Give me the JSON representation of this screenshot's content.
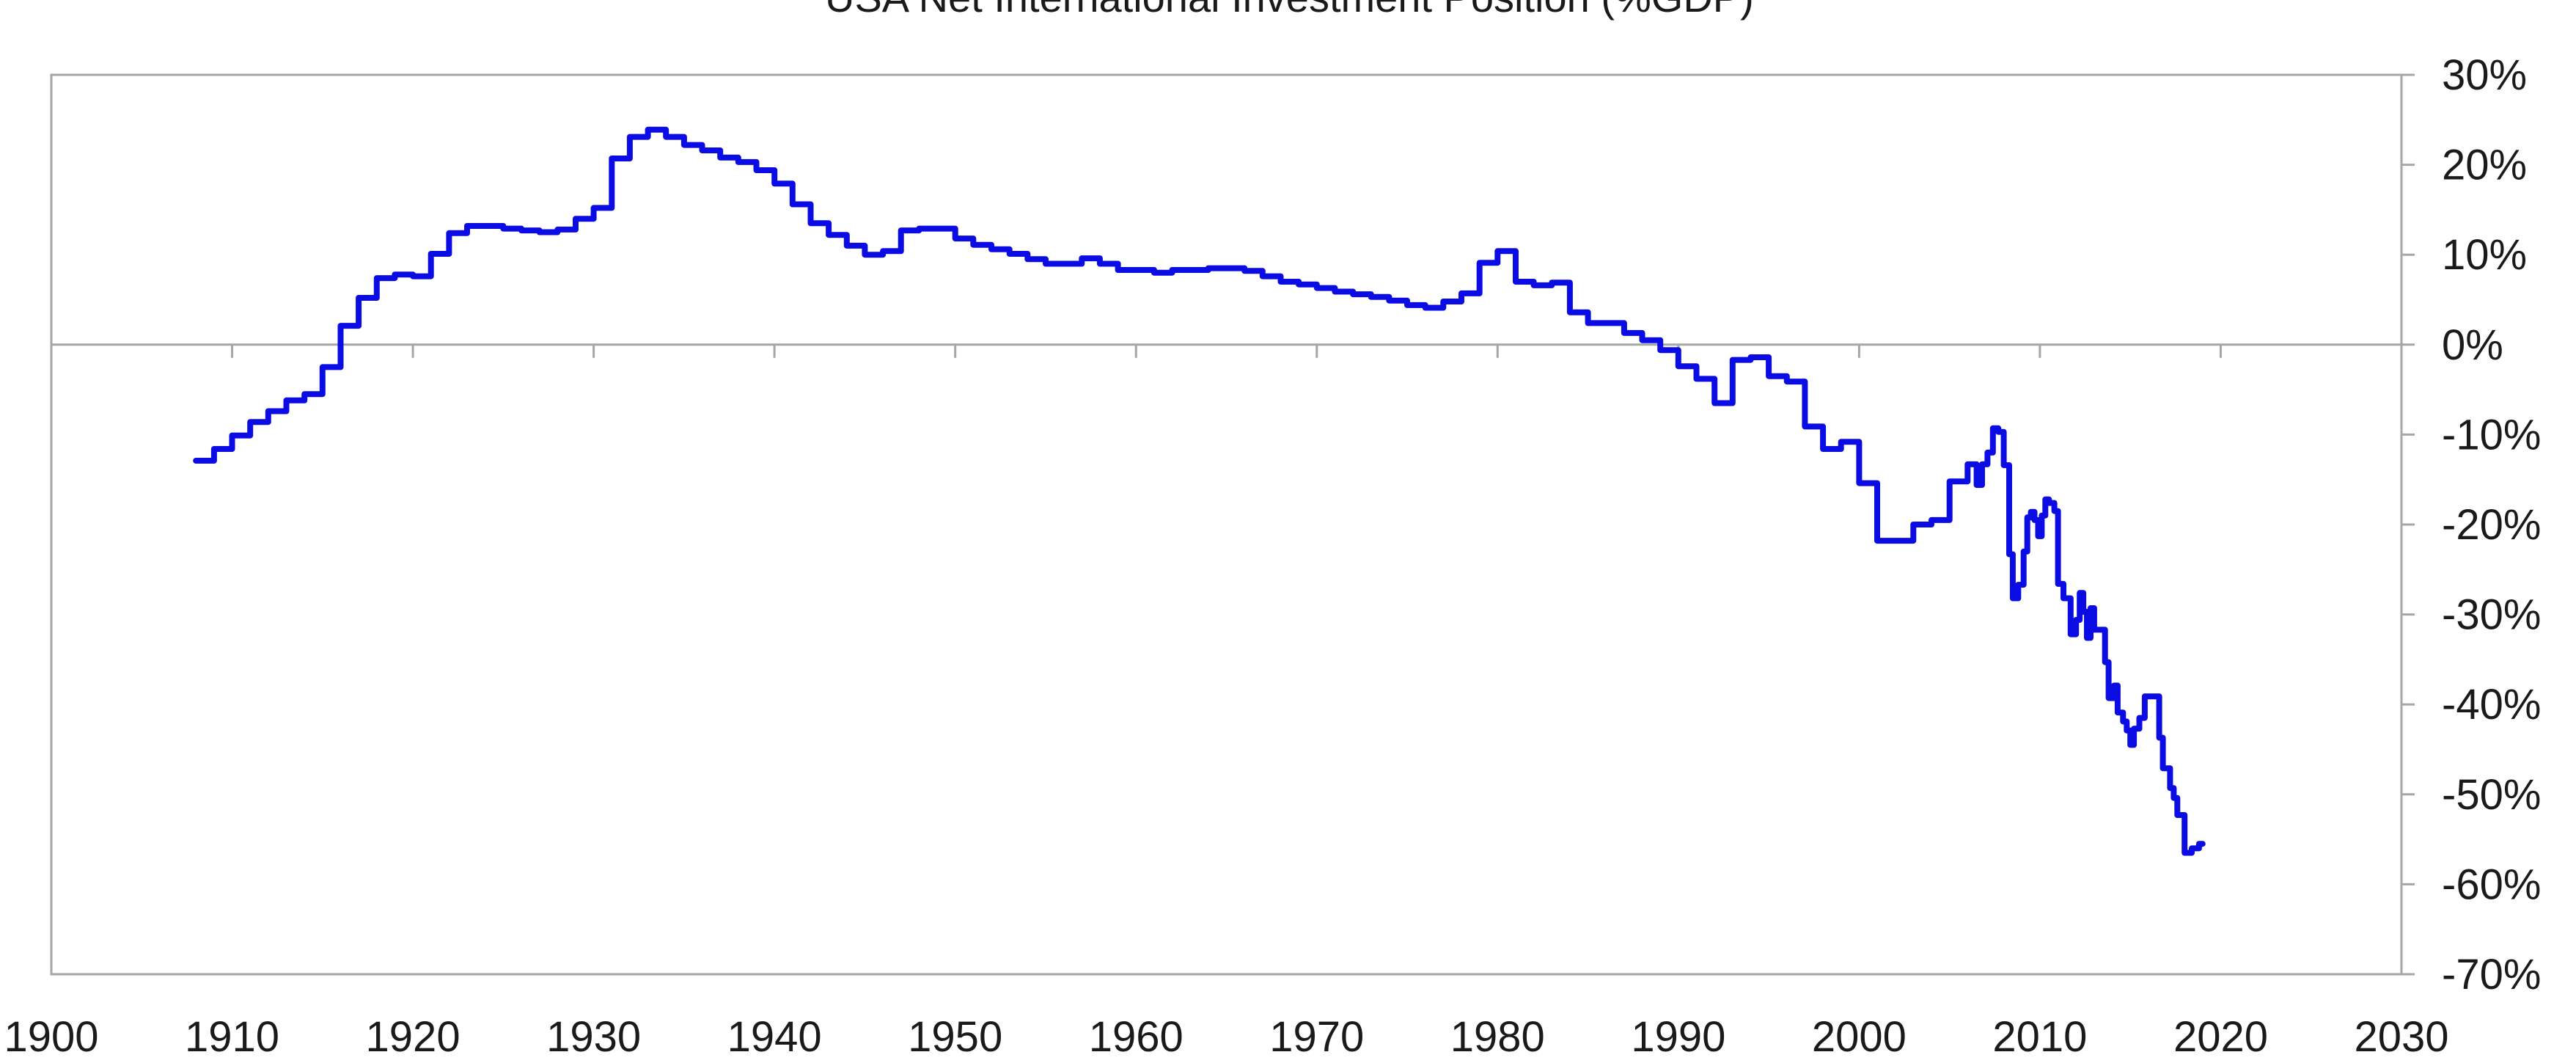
{
  "colors": {
    "series": "#0b0be3",
    "frame": "#a6a6a6",
    "text": "#1a1a1a"
  },
  "chart_data": {
    "type": "line",
    "title": "",
    "xlabel": "",
    "ylabel": "",
    "xlim": [
      1900,
      2030
    ],
    "ylim": [
      -70,
      30
    ],
    "x_ticks": [
      1900,
      1910,
      1920,
      1930,
      1940,
      1950,
      1960,
      1970,
      1980,
      1990,
      2000,
      2010,
      2020,
      2030
    ],
    "x_tick_labels": [
      "1900",
      "1910",
      "1920",
      "1930",
      "1940",
      "1950",
      "1960",
      "1970",
      "1980",
      "1990",
      "2000",
      "2010",
      "2020",
      "2030"
    ],
    "y_ticks": [
      30,
      20,
      10,
      0,
      -10,
      -20,
      -30,
      -40,
      -50,
      -60,
      -70
    ],
    "y_tick_labels": [
      "30%",
      "20%",
      "10%",
      "0%",
      "-10%",
      "-20%",
      "-30%",
      "-40%",
      "-50%",
      "-60%",
      "-70%"
    ],
    "y_axis_side": "right",
    "grid": false,
    "zero_line": true,
    "legend_position": "top",
    "series": [
      {
        "name": "USA Net International Investment Position (%GDP)",
        "color": "#0b0be3",
        "line_style": "step",
        "points": [
          [
            1908,
            -12.9
          ],
          [
            1909,
            -12.9
          ],
          [
            1909,
            -11.6
          ],
          [
            1910,
            -11.6
          ],
          [
            1910,
            -10.1
          ],
          [
            1911,
            -10.1
          ],
          [
            1911,
            -8.6
          ],
          [
            1912,
            -8.6
          ],
          [
            1912,
            -7.4
          ],
          [
            1913,
            -7.4
          ],
          [
            1913,
            -6.2
          ],
          [
            1914,
            -6.2
          ],
          [
            1914,
            -5.5
          ],
          [
            1915,
            -5.5
          ],
          [
            1915,
            -2.5
          ],
          [
            1916,
            -2.5
          ],
          [
            1916,
            2.1
          ],
          [
            1917,
            2.1
          ],
          [
            1917,
            5.2
          ],
          [
            1918,
            5.2
          ],
          [
            1918,
            7.4
          ],
          [
            1919,
            7.4
          ],
          [
            1919,
            7.8
          ],
          [
            1920,
            7.8
          ],
          [
            1920,
            7.6
          ],
          [
            1921,
            7.6
          ],
          [
            1921,
            10.1
          ],
          [
            1922,
            10.1
          ],
          [
            1922,
            12.4
          ],
          [
            1923,
            12.4
          ],
          [
            1923,
            13.2
          ],
          [
            1925,
            13.2
          ],
          [
            1925,
            12.9
          ],
          [
            1926,
            12.9
          ],
          [
            1926,
            12.7
          ],
          [
            1927,
            12.7
          ],
          [
            1927,
            12.5
          ],
          [
            1928,
            12.5
          ],
          [
            1928,
            12.8
          ],
          [
            1929,
            12.8
          ],
          [
            1929,
            14.0
          ],
          [
            1930,
            14.0
          ],
          [
            1930,
            15.2
          ],
          [
            1931,
            15.2
          ],
          [
            1931,
            20.7
          ],
          [
            1932,
            20.7
          ],
          [
            1932,
            23.1
          ],
          [
            1933,
            23.1
          ],
          [
            1933,
            23.9
          ],
          [
            1934,
            23.9
          ],
          [
            1934,
            23.1
          ],
          [
            1935,
            23.1
          ],
          [
            1935,
            22.2
          ],
          [
            1936,
            22.2
          ],
          [
            1936,
            21.6
          ],
          [
            1937,
            21.6
          ],
          [
            1937,
            20.8
          ],
          [
            1938,
            20.8
          ],
          [
            1938,
            20.3
          ],
          [
            1939,
            20.3
          ],
          [
            1939,
            19.4
          ],
          [
            1940,
            19.4
          ],
          [
            1940,
            17.9
          ],
          [
            1941,
            17.9
          ],
          [
            1941,
            15.6
          ],
          [
            1942,
            15.6
          ],
          [
            1942,
            13.5
          ],
          [
            1943,
            13.5
          ],
          [
            1943,
            12.2
          ],
          [
            1944,
            12.2
          ],
          [
            1944,
            11.0
          ],
          [
            1945,
            11.0
          ],
          [
            1945,
            10.0
          ],
          [
            1946,
            10.0
          ],
          [
            1946,
            10.4
          ],
          [
            1947,
            10.4
          ],
          [
            1947,
            12.7
          ],
          [
            1948,
            12.7
          ],
          [
            1948,
            12.9
          ],
          [
            1950,
            12.9
          ],
          [
            1950,
            11.8
          ],
          [
            1951,
            11.8
          ],
          [
            1951,
            11.1
          ],
          [
            1952,
            11.1
          ],
          [
            1952,
            10.6
          ],
          [
            1953,
            10.6
          ],
          [
            1953,
            10.1
          ],
          [
            1954,
            10.1
          ],
          [
            1954,
            9.5
          ],
          [
            1955,
            9.5
          ],
          [
            1955,
            9.0
          ],
          [
            1957,
            9.0
          ],
          [
            1957,
            9.6
          ],
          [
            1958,
            9.6
          ],
          [
            1958,
            9.0
          ],
          [
            1959,
            9.0
          ],
          [
            1959,
            8.3
          ],
          [
            1961,
            8.3
          ],
          [
            1961,
            8.0
          ],
          [
            1962,
            8.0
          ],
          [
            1962,
            8.3
          ],
          [
            1964,
            8.3
          ],
          [
            1964,
            8.5
          ],
          [
            1966,
            8.5
          ],
          [
            1966,
            8.2
          ],
          [
            1967,
            8.2
          ],
          [
            1967,
            7.6
          ],
          [
            1968,
            7.6
          ],
          [
            1968,
            7.0
          ],
          [
            1969,
            7.0
          ],
          [
            1969,
            6.7
          ],
          [
            1970,
            6.7
          ],
          [
            1970,
            6.3
          ],
          [
            1971,
            6.3
          ],
          [
            1971,
            5.9
          ],
          [
            1972,
            5.9
          ],
          [
            1972,
            5.6
          ],
          [
            1973,
            5.6
          ],
          [
            1973,
            5.3
          ],
          [
            1974,
            5.3
          ],
          [
            1974,
            4.9
          ],
          [
            1975,
            4.9
          ],
          [
            1975,
            4.4
          ],
          [
            1976,
            4.4
          ],
          [
            1976,
            4.1
          ],
          [
            1977,
            4.1
          ],
          [
            1977,
            4.8
          ],
          [
            1978,
            4.8
          ],
          [
            1978,
            5.7
          ],
          [
            1979,
            5.7
          ],
          [
            1979,
            9.1
          ],
          [
            1980,
            9.1
          ],
          [
            1980,
            10.4
          ],
          [
            1981,
            10.4
          ],
          [
            1981,
            7.0
          ],
          [
            1982,
            7.0
          ],
          [
            1982,
            6.6
          ],
          [
            1983,
            6.6
          ],
          [
            1983,
            6.9
          ],
          [
            1984,
            6.9
          ],
          [
            1984,
            3.6
          ],
          [
            1985,
            3.6
          ],
          [
            1985,
            2.4
          ],
          [
            1987,
            2.4
          ],
          [
            1987,
            1.3
          ],
          [
            1988,
            1.3
          ],
          [
            1988,
            0.5
          ],
          [
            1989,
            0.5
          ],
          [
            1989,
            -0.6
          ],
          [
            1990,
            -0.6
          ],
          [
            1990,
            -2.4
          ],
          [
            1991,
            -2.4
          ],
          [
            1991,
            -3.8
          ],
          [
            1992,
            -3.8
          ],
          [
            1992,
            -6.5
          ],
          [
            1993,
            -6.5
          ],
          [
            1993,
            -1.7
          ],
          [
            1994,
            -1.7
          ],
          [
            1994,
            -1.4
          ],
          [
            1995,
            -1.4
          ],
          [
            1995,
            -3.5
          ],
          [
            1996,
            -3.5
          ],
          [
            1996,
            -4.1
          ],
          [
            1997,
            -4.1
          ],
          [
            1997,
            -9.1
          ],
          [
            1998,
            -9.1
          ],
          [
            1998,
            -11.6
          ],
          [
            1999,
            -11.6
          ],
          [
            1999,
            -10.8
          ],
          [
            2000,
            -10.8
          ],
          [
            2000,
            -15.4
          ],
          [
            2001,
            -15.4
          ],
          [
            2001,
            -21.8
          ],
          [
            2003,
            -21.8
          ],
          [
            2003,
            -20.0
          ],
          [
            2004,
            -20.0
          ],
          [
            2004,
            -19.5
          ],
          [
            2005,
            -19.5
          ],
          [
            2005,
            -15.2
          ],
          [
            2006,
            -15.2
          ],
          [
            2006,
            -13.3
          ],
          [
            2006.5,
            -13.3
          ],
          [
            2006.5,
            -15.6
          ],
          [
            2006.8,
            -15.6
          ],
          [
            2006.8,
            -13.3
          ],
          [
            2007.1,
            -13.3
          ],
          [
            2007.1,
            -12.0
          ],
          [
            2007.4,
            -12.0
          ],
          [
            2007.4,
            -9.3
          ],
          [
            2007.7,
            -9.3
          ],
          [
            2007.7,
            -9.7
          ],
          [
            2008,
            -9.7
          ],
          [
            2008,
            -13.4
          ],
          [
            2008.3,
            -13.4
          ],
          [
            2008.3,
            -23.3
          ],
          [
            2008.5,
            -23.3
          ],
          [
            2008.5,
            -28.2
          ],
          [
            2008.8,
            -28.2
          ],
          [
            2008.8,
            -26.7
          ],
          [
            2009.1,
            -26.7
          ],
          [
            2009.1,
            -23.0
          ],
          [
            2009.3,
            -23.0
          ],
          [
            2009.3,
            -19.2
          ],
          [
            2009.5,
            -19.2
          ],
          [
            2009.5,
            -18.6
          ],
          [
            2009.7,
            -18.6
          ],
          [
            2009.7,
            -19.5
          ],
          [
            2009.9,
            -19.5
          ],
          [
            2009.9,
            -21.3
          ],
          [
            2010.1,
            -21.3
          ],
          [
            2010.1,
            -19.0
          ],
          [
            2010.3,
            -19.0
          ],
          [
            2010.3,
            -17.2
          ],
          [
            2010.5,
            -17.2
          ],
          [
            2010.5,
            -17.6
          ],
          [
            2010.8,
            -17.6
          ],
          [
            2010.8,
            -18.5
          ],
          [
            2011,
            -18.5
          ],
          [
            2011,
            -26.6
          ],
          [
            2011.3,
            -26.6
          ],
          [
            2011.3,
            -28.2
          ],
          [
            2011.7,
            -28.2
          ],
          [
            2011.7,
            -32.2
          ],
          [
            2012,
            -32.2
          ],
          [
            2012,
            -30.6
          ],
          [
            2012.2,
            -30.6
          ],
          [
            2012.2,
            -27.6
          ],
          [
            2012.4,
            -27.6
          ],
          [
            2012.4,
            -29.7
          ],
          [
            2012.6,
            -29.7
          ],
          [
            2012.6,
            -32.6
          ],
          [
            2012.8,
            -32.6
          ],
          [
            2012.8,
            -29.3
          ],
          [
            2013,
            -29.3
          ],
          [
            2013,
            -31.7
          ],
          [
            2013.6,
            -31.7
          ],
          [
            2013.6,
            -35.3
          ],
          [
            2013.8,
            -35.3
          ],
          [
            2013.8,
            -39.3
          ],
          [
            2014.1,
            -39.3
          ],
          [
            2014.1,
            -37.9
          ],
          [
            2014.3,
            -37.9
          ],
          [
            2014.3,
            -40.9
          ],
          [
            2014.6,
            -40.9
          ],
          [
            2014.6,
            -41.9
          ],
          [
            2014.8,
            -41.9
          ],
          [
            2014.8,
            -42.9
          ],
          [
            2015,
            -42.9
          ],
          [
            2015,
            -44.5
          ],
          [
            2015.2,
            -44.5
          ],
          [
            2015.2,
            -42.7
          ],
          [
            2015.5,
            -42.7
          ],
          [
            2015.5,
            -41.5
          ],
          [
            2015.8,
            -41.5
          ],
          [
            2015.8,
            -39.1
          ],
          [
            2016.6,
            -39.1
          ],
          [
            2016.6,
            -43.7
          ],
          [
            2016.8,
            -43.7
          ],
          [
            2016.8,
            -47.1
          ],
          [
            2017.2,
            -47.1
          ],
          [
            2017.2,
            -49.3
          ],
          [
            2017.4,
            -49.3
          ],
          [
            2017.4,
            -50.4
          ],
          [
            2017.6,
            -50.4
          ],
          [
            2017.6,
            -52.3
          ],
          [
            2018,
            -52.3
          ],
          [
            2018,
            -56.5
          ],
          [
            2018.4,
            -56.5
          ],
          [
            2018.4,
            -56.0
          ],
          [
            2018.8,
            -56.0
          ],
          [
            2018.8,
            -55.5
          ],
          [
            2019,
            -55.5
          ]
        ]
      }
    ]
  }
}
